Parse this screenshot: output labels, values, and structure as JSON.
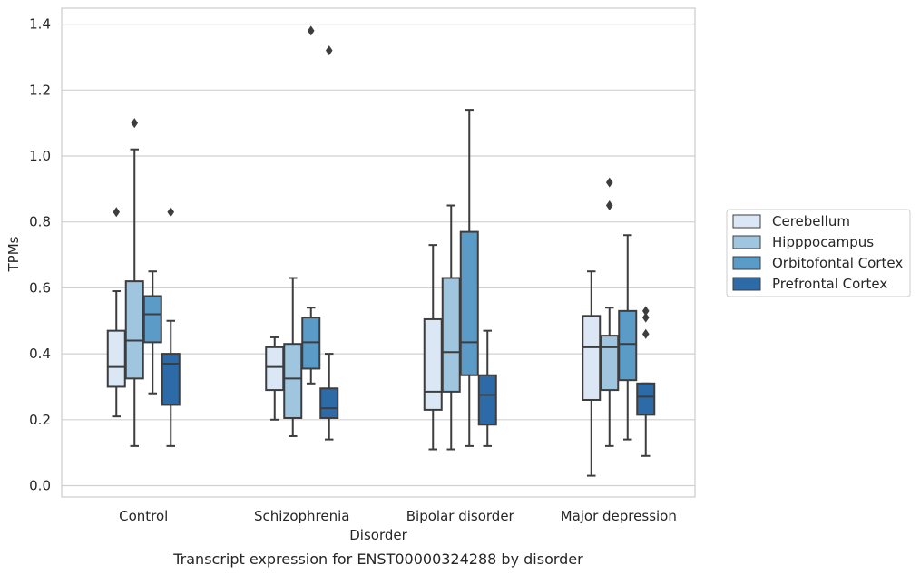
{
  "chart_data": {
    "type": "box",
    "title": "",
    "caption": "Transcript expression for ENST00000324288 by disorder",
    "xlabel": "Disorder",
    "ylabel": "TPMs",
    "ylim": [
      -0.035,
      1.45
    ],
    "yticks": [
      "0.0",
      "0.2",
      "0.4",
      "0.6",
      "0.8",
      "1.0",
      "1.2",
      "1.4"
    ],
    "grid": "horizontal",
    "legend_position": "right",
    "categories": [
      "Control",
      "Schizophrenia",
      "Bipolar disorder",
      "Major depression"
    ],
    "series": [
      {
        "name": "Cerebellum",
        "color": "#dbe7f4",
        "boxes": [
          {
            "whisker_low": 0.21,
            "q1": 0.3,
            "median": 0.36,
            "q3": 0.47,
            "whisker_high": 0.59,
            "outliers": [
              0.83
            ]
          },
          {
            "whisker_low": 0.2,
            "q1": 0.29,
            "median": 0.36,
            "q3": 0.42,
            "whisker_high": 0.45,
            "outliers": []
          },
          {
            "whisker_low": 0.11,
            "q1": 0.23,
            "median": 0.285,
            "q3": 0.505,
            "whisker_high": 0.73,
            "outliers": []
          },
          {
            "whisker_low": 0.03,
            "q1": 0.26,
            "median": 0.42,
            "q3": 0.515,
            "whisker_high": 0.65,
            "outliers": []
          }
        ]
      },
      {
        "name": "Hipppocampus",
        "color": "#9fc5df",
        "boxes": [
          {
            "whisker_low": 0.12,
            "q1": 0.325,
            "median": 0.44,
            "q3": 0.62,
            "whisker_high": 1.02,
            "outliers": [
              1.1
            ]
          },
          {
            "whisker_low": 0.15,
            "q1": 0.205,
            "median": 0.325,
            "q3": 0.43,
            "whisker_high": 0.63,
            "outliers": []
          },
          {
            "whisker_low": 0.11,
            "q1": 0.285,
            "median": 0.405,
            "q3": 0.63,
            "whisker_high": 0.85,
            "outliers": []
          },
          {
            "whisker_low": 0.12,
            "q1": 0.29,
            "median": 0.42,
            "q3": 0.455,
            "whisker_high": 0.54,
            "outliers": [
              0.85,
              0.92
            ]
          }
        ]
      },
      {
        "name": "Orbitofontal Cortex",
        "color": "#5b9bc8",
        "boxes": [
          {
            "whisker_low": 0.28,
            "q1": 0.435,
            "median": 0.52,
            "q3": 0.575,
            "whisker_high": 0.65,
            "outliers": []
          },
          {
            "whisker_low": 0.31,
            "q1": 0.355,
            "median": 0.435,
            "q3": 0.51,
            "whisker_high": 0.54,
            "outliers": [
              1.38
            ]
          },
          {
            "whisker_low": 0.12,
            "q1": 0.335,
            "median": 0.435,
            "q3": 0.77,
            "whisker_high": 1.14,
            "outliers": []
          },
          {
            "whisker_low": 0.14,
            "q1": 0.32,
            "median": 0.43,
            "q3": 0.53,
            "whisker_high": 0.76,
            "outliers": []
          }
        ]
      },
      {
        "name": "Prefrontal Cortex",
        "color": "#2c6ba8",
        "boxes": [
          {
            "whisker_low": 0.12,
            "q1": 0.245,
            "median": 0.37,
            "q3": 0.4,
            "whisker_high": 0.5,
            "outliers": [
              0.83
            ]
          },
          {
            "whisker_low": 0.14,
            "q1": 0.205,
            "median": 0.235,
            "q3": 0.295,
            "whisker_high": 0.4,
            "outliers": [
              1.32
            ]
          },
          {
            "whisker_low": 0.12,
            "q1": 0.185,
            "median": 0.275,
            "q3": 0.335,
            "whisker_high": 0.47,
            "outliers": []
          },
          {
            "whisker_low": 0.09,
            "q1": 0.215,
            "median": 0.27,
            "q3": 0.31,
            "whisker_high": 0.31,
            "outliers": [
              0.46,
              0.51,
              0.53
            ]
          }
        ]
      }
    ]
  }
}
